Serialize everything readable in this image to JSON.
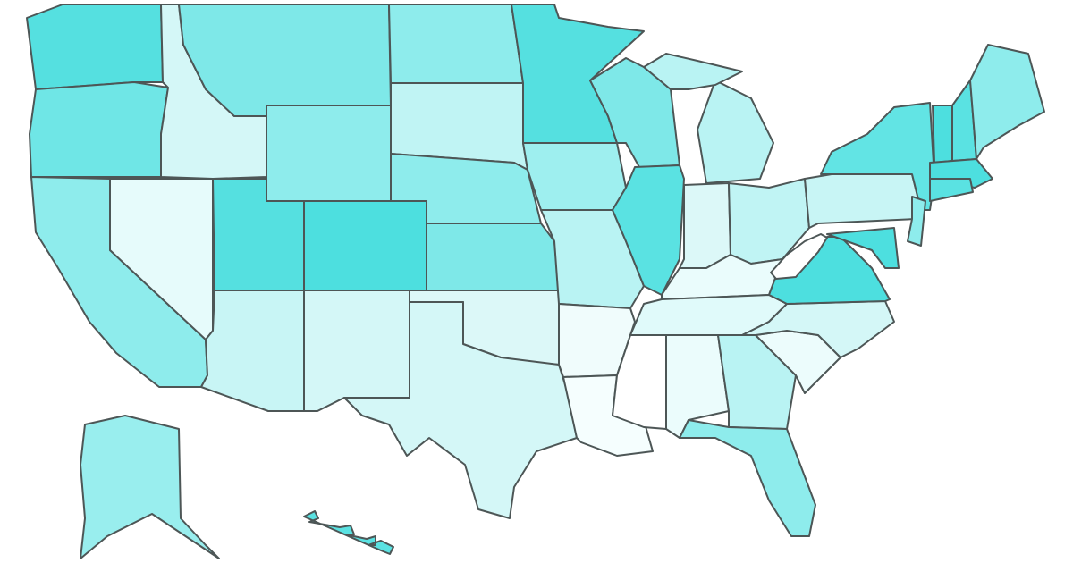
{
  "map": {
    "regions": [
      {
        "color": "#55e0e0"
      },
      {
        "color": "#6fe6e6"
      },
      {
        "color": "#8eecec"
      },
      {
        "color": "#e6fbfb"
      },
      {
        "color": "#d4f7f7"
      },
      {
        "color": "#7ee8e8"
      },
      {
        "color": "#8eecec"
      },
      {
        "color": "#55e0e0"
      },
      {
        "color": "#4ddfdf"
      },
      {
        "color": "#c8f5f5"
      },
      {
        "color": "#d4f7f7"
      },
      {
        "color": "#8eecec"
      },
      {
        "color": "#c0f4f4"
      },
      {
        "color": "#8eecec"
      },
      {
        "color": "#7ee8e8"
      },
      {
        "color": "#dcf8f8"
      },
      {
        "color": "#d4f7f7"
      },
      {
        "color": "#55e0e0"
      },
      {
        "color": "#9eefef"
      },
      {
        "color": "#b9f3f3"
      },
      {
        "color": "#f0fcfc"
      },
      {
        "color": "#f5fefe"
      },
      {
        "color": "#7ee8e8"
      },
      {
        "color": "#5ae2e2"
      },
      {
        "color": "#b9f3f3"
      },
      {
        "color": "#b9f3f3"
      },
      {
        "color": "#dcf8f8"
      },
      {
        "color": "#c0f4f4"
      },
      {
        "color": "#eafcfc"
      },
      {
        "color": "#e0fafa"
      },
      {
        "color": "#ffffff"
      },
      {
        "color": "#ebfcfc"
      },
      {
        "color": "#b9f3f3"
      },
      {
        "color": "#8eecec"
      },
      {
        "color": "#ecfcfc"
      },
      {
        "color": "#d4f7f7"
      },
      {
        "color": "#4ddfdf"
      },
      {
        "color": "#ffffff"
      },
      {
        "color": "#c8f5f5"
      },
      {
        "color": "#62e4e4"
      },
      {
        "color": "#8eecec"
      },
      {
        "color": "#4ddfdf"
      },
      {
        "color": "#4ddfdf"
      },
      {
        "color": "#5ae2e2"
      },
      {
        "color": "#8eecec"
      },
      {
        "color": "#4ddfdf"
      },
      {
        "color": "#5ae2e2"
      },
      {
        "color": "#99eeee"
      },
      {
        "color": "#5ae2e2"
      }
    ]
  }
}
